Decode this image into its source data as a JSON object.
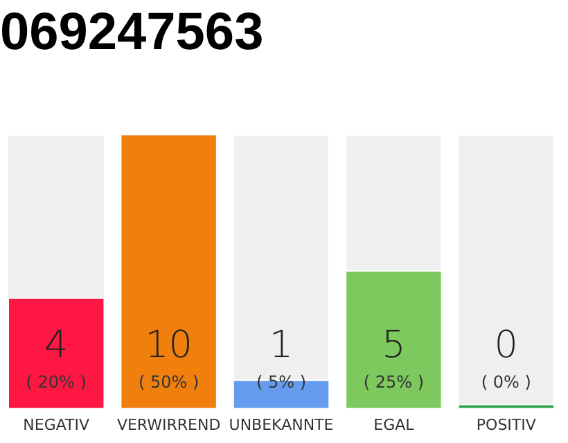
{
  "chart_data": {
    "type": "bar",
    "title": "069247563",
    "categories": [
      "NEGATIV",
      "VERWIRREND",
      "UNBEKANNTE",
      "EGAL",
      "POSITIV"
    ],
    "values": [
      4,
      10,
      1,
      5,
      0
    ],
    "colors": [
      "#ff1744",
      "#f07f0e",
      "#659cee",
      "#7dc95e",
      "#2ea44f"
    ],
    "ylim": [
      0,
      10
    ],
    "data_labels": true,
    "grid": false,
    "legend": false,
    "tick_labels": "x",
    "annotations": [
      "( 20% )",
      "( 50% )",
      "( 5% )",
      "( 25% )",
      "( 0% )"
    ]
  }
}
